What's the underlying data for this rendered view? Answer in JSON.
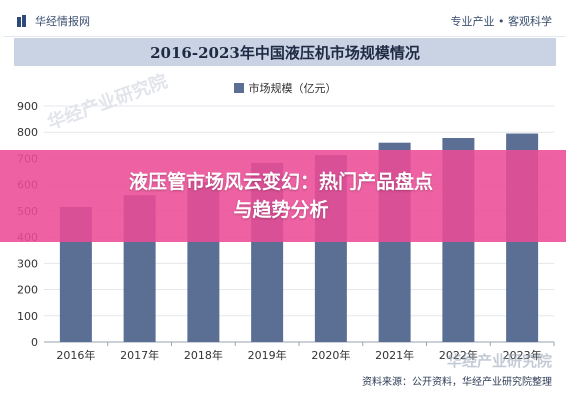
{
  "header": {
    "logo_text": "华经情报网",
    "slogan": "专业产业 • 客观科学"
  },
  "chart_data": {
    "type": "bar",
    "title": "2016-2023年中国液压机市场规模情况",
    "categories": [
      "2016年",
      "2017年",
      "2018年",
      "2019年",
      "2020年",
      "2021年",
      "2022年",
      "2023年"
    ],
    "series": [
      {
        "name": "市场规模（亿元）",
        "values": [
          515,
          560,
          610,
          683,
          713,
          760,
          778,
          795
        ]
      }
    ],
    "ylim": [
      0,
      900
    ],
    "yticks": [
      0,
      100,
      200,
      300,
      400,
      500,
      600,
      700,
      800,
      900
    ],
    "grid": true,
    "legend_position": "top-center",
    "bar_color": "#5b6f94"
  },
  "overlay": {
    "line1": "液压管市场风云变幻：热门产品盘点",
    "line2": "与趋势分析"
  },
  "footer": {
    "source": "资料来源：公开资料，华经产业研究院整理"
  },
  "watermarks": {
    "diagonal": "华经产业研究院",
    "corner": "华经产业研究院"
  }
}
